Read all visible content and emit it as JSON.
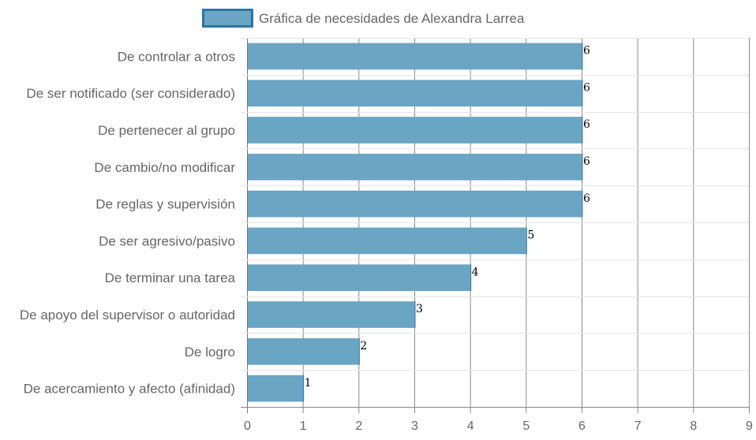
{
  "chart_data": {
    "type": "bar",
    "orientation": "horizontal",
    "categories": [
      "De controlar a otros",
      "De ser notificado (ser considerado)",
      "De pertenecer al grupo",
      "De cambio/no modificar",
      "De reglas y supervisión",
      "De ser agresivo/pasivo",
      "De terminar una tarea",
      "De apoyo del supervisor o autoridad",
      "De logro",
      "De acercamiento y afecto (afinidad)"
    ],
    "series": [
      {
        "name": "Gráfica de necesidades de Alexandra Larrea",
        "values": [
          6,
          6,
          6,
          6,
          6,
          5,
          4,
          3,
          2,
          1
        ],
        "color": "#6aa5c4",
        "border_color": "#2e75a0"
      }
    ],
    "xlim": [
      0,
      9
    ],
    "x_ticks": [
      0,
      1,
      2,
      3,
      4,
      5,
      6,
      7,
      8,
      9
    ],
    "grid": true,
    "legend_position": "top",
    "data_labels": true
  }
}
